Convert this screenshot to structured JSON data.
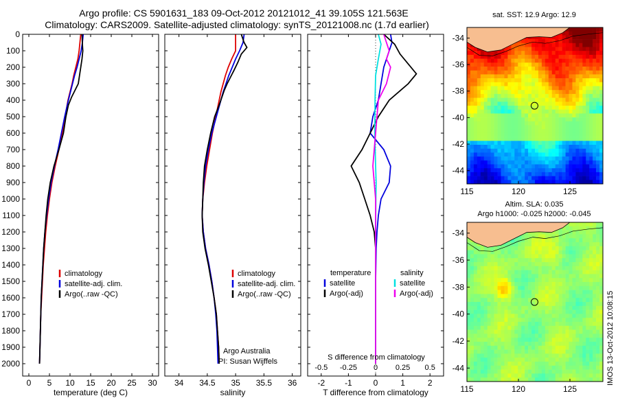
{
  "header": {
    "line1": "Argo profile: CS 5901631_183 09-Oct-2012 20121012_41 39.105S 121.563E",
    "line2": "Climatology: CARS2009. Satellite-adjusted climatology: synTS_20121008.nc (1.7d earlier)"
  },
  "depth_ticks": [
    0,
    100,
    200,
    300,
    400,
    500,
    600,
    700,
    800,
    900,
    1000,
    1100,
    1200,
    1300,
    1400,
    1500,
    1600,
    1700,
    1800,
    1900,
    2000
  ],
  "side_note": "IMOS 13-Oct-2012 10:08:15",
  "chart_data": [
    {
      "type": "line",
      "id": "temperature",
      "xlabel": "temperature (deg C)",
      "xlim": [
        -1.5,
        31.5
      ],
      "xticks": [
        0,
        5,
        10,
        15,
        20,
        25,
        30
      ],
      "ylim": [
        2075,
        0
      ],
      "series": [
        {
          "name": "climatology",
          "color": "#dd0000",
          "points": [
            [
              12.6,
              0
            ],
            [
              12.4,
              50
            ],
            [
              12.2,
              100
            ],
            [
              11.9,
              150
            ],
            [
              11.4,
              200
            ],
            [
              10.9,
              250
            ],
            [
              10.5,
              300
            ],
            [
              10.0,
              350
            ],
            [
              9.5,
              400
            ],
            [
              8.8,
              500
            ],
            [
              8.1,
              600
            ],
            [
              7.3,
              700
            ],
            [
              6.4,
              800
            ],
            [
              5.6,
              900
            ],
            [
              5.0,
              1000
            ],
            [
              4.5,
              1100
            ],
            [
              4.1,
              1200
            ],
            [
              3.8,
              1300
            ],
            [
              3.5,
              1400
            ],
            [
              3.3,
              1500
            ],
            [
              3.1,
              1600
            ],
            [
              2.9,
              1700
            ],
            [
              2.8,
              1800
            ],
            [
              2.7,
              1900
            ],
            [
              2.6,
              2000
            ]
          ]
        },
        {
          "name": "satellite-adj. clim.",
          "color": "#0000dd",
          "points": [
            [
              13.2,
              0
            ],
            [
              13.0,
              50
            ],
            [
              12.7,
              100
            ],
            [
              12.2,
              150
            ],
            [
              11.7,
              200
            ],
            [
              11.1,
              250
            ],
            [
              10.6,
              300
            ],
            [
              10.1,
              350
            ],
            [
              9.6,
              400
            ],
            [
              8.7,
              500
            ],
            [
              7.9,
              600
            ],
            [
              7.1,
              700
            ],
            [
              6.2,
              800
            ],
            [
              5.4,
              900
            ],
            [
              4.8,
              1000
            ],
            [
              4.3,
              1100
            ],
            [
              3.9,
              1200
            ],
            [
              3.6,
              1300
            ],
            [
              3.4,
              1400
            ],
            [
              3.2,
              1500
            ],
            [
              3.0,
              1600
            ],
            [
              2.9,
              1700
            ],
            [
              2.8,
              1800
            ],
            [
              2.7,
              1900
            ],
            [
              2.6,
              2000
            ]
          ]
        },
        {
          "name": "Argo(..raw -QC)",
          "color": "#000000",
          "points": [
            [
              12.9,
              0
            ],
            [
              13.0,
              60
            ],
            [
              13.1,
              100
            ],
            [
              12.9,
              150
            ],
            [
              12.6,
              200
            ],
            [
              12.3,
              250
            ],
            [
              12.0,
              300
            ],
            [
              11.2,
              340
            ],
            [
              10.4,
              380
            ],
            [
              9.6,
              430
            ],
            [
              9.0,
              500
            ],
            [
              8.4,
              600
            ],
            [
              7.3,
              700
            ],
            [
              6.1,
              800
            ],
            [
              5.2,
              900
            ],
            [
              4.6,
              1000
            ],
            [
              4.2,
              1100
            ],
            [
              3.9,
              1200
            ],
            [
              3.6,
              1300
            ],
            [
              3.4,
              1400
            ],
            [
              3.2,
              1500
            ],
            [
              3.0,
              1600
            ],
            [
              2.9,
              1700
            ],
            [
              2.8,
              1800
            ],
            [
              2.7,
              1900
            ],
            [
              2.6,
              2000
            ]
          ]
        }
      ]
    },
    {
      "type": "line",
      "id": "salinity",
      "xlabel": "salinity",
      "xlim": [
        33.75,
        36.15
      ],
      "xticks": [
        34,
        34.5,
        35,
        35.5,
        36
      ],
      "xtick_labels": [
        "34",
        "34.5",
        "35",
        "35.5",
        "36"
      ],
      "ylim": [
        2075,
        0
      ],
      "annotation": [
        "Argo Australia",
        "PI: Susan Wijffels"
      ],
      "series": [
        {
          "name": "climatology",
          "color": "#dd0000",
          "points": [
            [
              35.0,
              0
            ],
            [
              35.0,
              50
            ],
            [
              35.0,
              100
            ],
            [
              34.93,
              150
            ],
            [
              34.87,
              200
            ],
            [
              34.82,
              250
            ],
            [
              34.78,
              300
            ],
            [
              34.74,
              350
            ],
            [
              34.71,
              400
            ],
            [
              34.65,
              500
            ],
            [
              34.59,
              600
            ],
            [
              34.54,
              700
            ],
            [
              34.49,
              800
            ],
            [
              34.45,
              900
            ],
            [
              34.42,
              1000
            ],
            [
              34.41,
              1100
            ],
            [
              34.43,
              1200
            ],
            [
              34.47,
              1300
            ],
            [
              34.53,
              1400
            ],
            [
              34.58,
              1500
            ],
            [
              34.62,
              1600
            ],
            [
              34.66,
              1700
            ],
            [
              34.68,
              1800
            ],
            [
              34.7,
              1900
            ],
            [
              34.71,
              2000
            ]
          ]
        },
        {
          "name": "satellite-adj. clim.",
          "color": "#0000dd",
          "points": [
            [
              35.15,
              0
            ],
            [
              35.13,
              50
            ],
            [
              35.07,
              100
            ],
            [
              35.0,
              150
            ],
            [
              34.94,
              200
            ],
            [
              34.88,
              250
            ],
            [
              34.83,
              300
            ],
            [
              34.78,
              350
            ],
            [
              34.74,
              400
            ],
            [
              34.66,
              500
            ],
            [
              34.58,
              600
            ],
            [
              34.52,
              700
            ],
            [
              34.47,
              800
            ],
            [
              34.44,
              900
            ],
            [
              34.42,
              1000
            ],
            [
              34.41,
              1100
            ],
            [
              34.43,
              1200
            ],
            [
              34.47,
              1300
            ],
            [
              34.53,
              1400
            ],
            [
              34.58,
              1500
            ],
            [
              34.62,
              1600
            ],
            [
              34.65,
              1700
            ],
            [
              34.67,
              1800
            ],
            [
              34.68,
              1900
            ],
            [
              34.69,
              2000
            ]
          ]
        },
        {
          "name": "Argo(..raw -QC)",
          "color": "#000000",
          "points": [
            [
              35.1,
              0
            ],
            [
              35.15,
              50
            ],
            [
              35.2,
              80
            ],
            [
              35.1,
              120
            ],
            [
              35.04,
              170
            ],
            [
              34.97,
              220
            ],
            [
              34.91,
              260
            ],
            [
              34.85,
              300
            ],
            [
              34.8,
              340
            ],
            [
              34.76,
              380
            ],
            [
              34.72,
              420
            ],
            [
              34.63,
              500
            ],
            [
              34.56,
              600
            ],
            [
              34.5,
              700
            ],
            [
              34.45,
              800
            ],
            [
              34.43,
              900
            ],
            [
              34.42,
              1000
            ],
            [
              34.41,
              1100
            ],
            [
              34.42,
              1200
            ],
            [
              34.46,
              1300
            ],
            [
              34.52,
              1400
            ],
            [
              34.57,
              1500
            ],
            [
              34.62,
              1600
            ],
            [
              34.66,
              1700
            ],
            [
              34.68,
              1800
            ],
            [
              34.7,
              1900
            ],
            [
              34.71,
              2000
            ]
          ]
        }
      ]
    },
    {
      "type": "line",
      "id": "difference",
      "xlabel": "T difference from climatology",
      "top_label": "S difference from climatology",
      "xlim": [
        -2.5,
        2.5
      ],
      "xticks": [
        -2,
        -1,
        0,
        1,
        2
      ],
      "top_ticks": [
        -0.5,
        -0.25,
        0,
        0.25,
        0.5
      ],
      "top_tick_labels": [
        "-0.5",
        "-0.25",
        "0",
        "0.25",
        "0.5"
      ],
      "ylim": [
        2075,
        0
      ],
      "legend_headers": [
        "temperature",
        "salinity"
      ],
      "series": [
        {
          "name": "satellite",
          "group": "temperature",
          "color": "#0000dd",
          "points": [
            [
              0.55,
              0
            ],
            [
              0.6,
              50
            ],
            [
              0.5,
              100
            ],
            [
              0.3,
              200
            ],
            [
              0.2,
              300
            ],
            [
              0.1,
              400
            ],
            [
              -0.1,
              500
            ],
            [
              -0.2,
              600
            ],
            [
              0.3,
              700
            ],
            [
              0.55,
              800
            ],
            [
              0.5,
              900
            ],
            [
              0.2,
              1000
            ],
            [
              0.1,
              1100
            ],
            [
              0.05,
              1200
            ],
            [
              0.02,
              1300
            ],
            [
              0,
              1500
            ],
            [
              0,
              1700
            ],
            [
              0,
              2000
            ]
          ]
        },
        {
          "name": "Argo(-adj)",
          "group": "temperature",
          "color": "#000000",
          "points": [
            [
              0.3,
              0
            ],
            [
              0.7,
              60
            ],
            [
              0.9,
              120
            ],
            [
              1.2,
              180
            ],
            [
              1.5,
              240
            ],
            [
              1.2,
              300
            ],
            [
              0.5,
              400
            ],
            [
              0.1,
              500
            ],
            [
              -0.2,
              600
            ],
            [
              -0.5,
              700
            ],
            [
              -0.9,
              800
            ],
            [
              -0.6,
              900
            ],
            [
              -0.4,
              1000
            ],
            [
              -0.2,
              1100
            ],
            [
              -0.05,
              1200
            ],
            [
              0,
              1300
            ],
            [
              0,
              1500
            ],
            [
              0,
              1700
            ],
            [
              0,
              2000
            ]
          ]
        },
        {
          "name": "satellite",
          "group": "salinity",
          "color": "#00e0e0",
          "points": [
            [
              0.1,
              0
            ],
            [
              0.2,
              60
            ],
            [
              0.1,
              150
            ],
            [
              0.0,
              250
            ],
            [
              -0.02,
              400
            ],
            [
              -0.03,
              600
            ],
            [
              0.0,
              800
            ],
            [
              0.02,
              900
            ],
            [
              0.01,
              1000
            ],
            [
              0,
              1200
            ],
            [
              0,
              1400
            ],
            [
              0,
              1700
            ],
            [
              0,
              2000
            ]
          ]
        },
        {
          "name": "Argo(-adj)",
          "group": "salinity",
          "color": "#ee00ee",
          "points": [
            [
              0.3,
              0
            ],
            [
              0.4,
              50
            ],
            [
              0.5,
              100
            ],
            [
              0.4,
              150
            ],
            [
              0.55,
              200
            ],
            [
              0.4,
              300
            ],
            [
              0.1,
              400
            ],
            [
              0.05,
              500
            ],
            [
              0,
              600
            ],
            [
              -0.05,
              700
            ],
            [
              -0.1,
              800
            ],
            [
              -0.05,
              900
            ],
            [
              0,
              1000
            ],
            [
              0,
              1200
            ],
            [
              0,
              1500
            ],
            [
              0,
              2000
            ]
          ]
        }
      ]
    },
    {
      "type": "heatmap",
      "id": "sst_map",
      "title": "sat. SST: 12.9 Argo: 12.9",
      "xlim": [
        115,
        128.2
      ],
      "ylim": [
        -45,
        -33.2
      ],
      "xticks": [
        115,
        120,
        125
      ],
      "yticks": [
        -34,
        -36,
        -38,
        -40,
        -42,
        -44
      ],
      "float_position": [
        121.563,
        -39.105
      ],
      "colormap": "jet"
    },
    {
      "type": "heatmap",
      "id": "sla_map",
      "title_lines": [
        "Altim. SLA: 0.035",
        "Argo h1000: -0.025 h2000: -0.045"
      ],
      "xlim": [
        115,
        128.2
      ],
      "ylim": [
        -45,
        -33.2
      ],
      "xticks": [
        115,
        120,
        125
      ],
      "yticks": [
        -34,
        -36,
        -38,
        -40,
        -42,
        -44
      ],
      "float_position": [
        121.563,
        -39.105
      ],
      "colormap": "jet"
    }
  ]
}
